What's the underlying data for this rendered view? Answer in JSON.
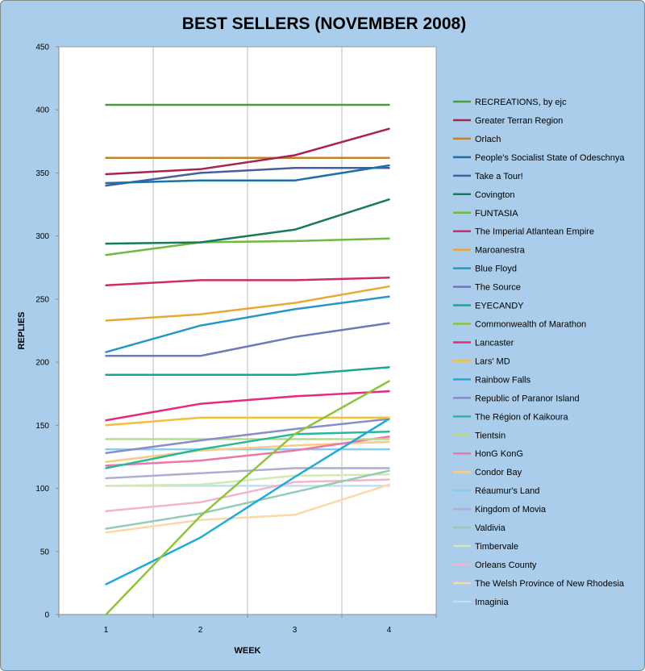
{
  "chart_data": {
    "type": "line",
    "title": "BEST SELLERS (NOVEMBER 2008)",
    "xlabel": "WEEK",
    "ylabel": "REPLIES",
    "x": [
      1,
      2,
      3,
      4
    ],
    "ylim": [
      0,
      450
    ],
    "yticks": [
      0,
      50,
      100,
      150,
      200,
      250,
      300,
      350,
      400,
      450
    ],
    "grid": "vertical",
    "legend_position": "right",
    "series": [
      {
        "name": "RECREATIONS, by ejc",
        "color": "#4e9a3e",
        "values": [
          404,
          404,
          404,
          404
        ]
      },
      {
        "name": "Greater Terran Region",
        "color": "#a8234e",
        "values": [
          349,
          353,
          364,
          385
        ]
      },
      {
        "name": "Orlach",
        "color": "#c4802c",
        "values": [
          362,
          362,
          362,
          362
        ]
      },
      {
        "name": "People's Socialist State of Odeschnya",
        "color": "#1a72a8",
        "values": [
          342,
          344,
          344,
          356
        ]
      },
      {
        "name": "Take a Tour!",
        "color": "#4a5d9e",
        "values": [
          340,
          350,
          354,
          354
        ]
      },
      {
        "name": "Covington",
        "color": "#177a5c",
        "values": [
          294,
          295,
          305,
          329
        ]
      },
      {
        "name": "FUNTASIA",
        "color": "#72b844",
        "values": [
          285,
          295,
          296,
          298
        ]
      },
      {
        "name": "The Imperial Atlantean Empire",
        "color": "#cf2a6c",
        "values": [
          261,
          265,
          265,
          267
        ]
      },
      {
        "name": "Maroanestra",
        "color": "#e8a838",
        "values": [
          233,
          238,
          247,
          260
        ]
      },
      {
        "name": "Blue Floyd",
        "color": "#2498c8",
        "values": [
          208,
          229,
          242,
          252
        ]
      },
      {
        "name": "The Source",
        "color": "#6d79b8",
        "values": [
          205,
          205,
          220,
          231
        ]
      },
      {
        "name": "EYECANDY",
        "color": "#1aa58c",
        "values": [
          190,
          190,
          190,
          196
        ]
      },
      {
        "name": "Commonwealth of Marathon",
        "color": "#8ec43c",
        "values": [
          0,
          78,
          143,
          185
        ]
      },
      {
        "name": "Lancaster",
        "color": "#e8287c",
        "values": [
          154,
          167,
          173,
          177
        ]
      },
      {
        "name": "Lars' MD",
        "color": "#f4c03c",
        "values": [
          150,
          156,
          156,
          156
        ]
      },
      {
        "name": "Rainbow Falls",
        "color": "#20aad8",
        "values": [
          24,
          61,
          109,
          155
        ]
      },
      {
        "name": "Republic of Paranor  Island",
        "color": "#8a8ec8",
        "values": [
          128,
          138,
          147,
          155
        ]
      },
      {
        "name": "The Région of Kaikoura",
        "color": "#2ab89c",
        "values": [
          116,
          131,
          143,
          145
        ]
      },
      {
        "name": "Tientsin",
        "color": "#b6dc8c",
        "values": [
          139,
          139,
          139,
          139
        ]
      },
      {
        "name": "HonG KonG",
        "color": "#ec78a8",
        "values": [
          118,
          122,
          130,
          141
        ]
      },
      {
        "name": "Condor Bay",
        "color": "#f8cc84",
        "values": [
          121,
          130,
          134,
          137
        ]
      },
      {
        "name": "Réaumur's Land",
        "color": "#8ccce8",
        "values": [
          131,
          131,
          131,
          131
        ]
      },
      {
        "name": "Kingdom of Movia",
        "color": "#aeaed4",
        "values": [
          108,
          112,
          116,
          116
        ]
      },
      {
        "name": "Valdivia",
        "color": "#94ccb4",
        "values": [
          68,
          80,
          97,
          114
        ]
      },
      {
        "name": "Timbervale",
        "color": "#d4e8b4",
        "values": [
          102,
          103,
          110,
          111
        ]
      },
      {
        "name": "Orleans County",
        "color": "#f4b4cc",
        "values": [
          82,
          89,
          105,
          107
        ]
      },
      {
        "name": "The Welsh Province  of New Rhodesia",
        "color": "#fcd8a8",
        "values": [
          65,
          75,
          79,
          103
        ]
      },
      {
        "name": "Imaginia",
        "color": "#bce0f4",
        "values": [
          102,
          102,
          102,
          102
        ]
      }
    ]
  }
}
